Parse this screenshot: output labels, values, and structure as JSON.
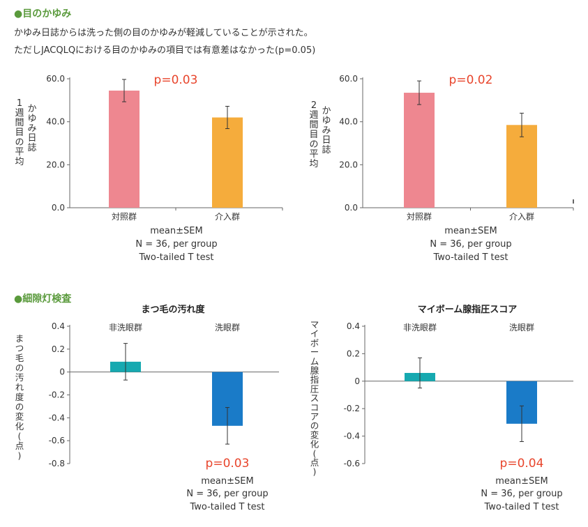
{
  "section1": {
    "heading": "●目のかゆみ",
    "line1": "かゆみ日誌からは洗った側の目のかゆみが軽減していることが示された。",
    "line2": "ただしJACQLQにおける目のかゆみの項目では有意差はなかった(p=0.05)"
  },
  "section2": {
    "heading": "●細隙灯検査"
  },
  "colors": {
    "control_bar": "#ee8790",
    "intervention_bar": "#f5ac3c",
    "non_wash_bar": "#16a9b0",
    "wash_bar": "#1a7bc8",
    "p_value": "#e8452c",
    "section_heading": "#5a9a3c"
  },
  "chart_data": [
    {
      "type": "bar",
      "title": "",
      "ylabel_col1": "1週間目の平均",
      "ylabel_col2": "かゆみ日誌",
      "categories": [
        "対照群",
        "介入群"
      ],
      "values": [
        54.5,
        42.0
      ],
      "errors": [
        5.2,
        5.2
      ],
      "yticks": [
        "60.0",
        "40.0",
        "20.0",
        "0.0"
      ],
      "ylim": [
        0,
        60
      ],
      "p_value": "p=0.03",
      "notes": [
        "mean±SEM",
        "N = 36, per group",
        "Two-tailed T test"
      ]
    },
    {
      "type": "bar",
      "title": "",
      "ylabel_col1": "2週間目の平均",
      "ylabel_col2": "かゆみ日誌",
      "categories": [
        "対照群",
        "介入群"
      ],
      "values": [
        53.5,
        38.5
      ],
      "errors": [
        5.5,
        5.5
      ],
      "yticks": [
        "60.0",
        "40.0",
        "20.0",
        "0.0"
      ],
      "ylim": [
        0,
        60
      ],
      "p_value": "p=0.02",
      "notes": [
        "mean±SEM",
        "N = 36, per group",
        "Two-tailed T test"
      ]
    },
    {
      "type": "bar",
      "title": "まつ毛の汚れ度",
      "ylabel": "まつ毛の汚れ度の変化(点)",
      "categories": [
        "非洗眼群",
        "洗眼群"
      ],
      "values": [
        0.09,
        -0.47
      ],
      "errors": [
        0.16,
        0.16
      ],
      "yticks": [
        "0.4",
        "0.2",
        "0",
        "-0.2",
        "-0.4",
        "-0.6",
        "-0.8"
      ],
      "ylim": [
        -0.8,
        0.4
      ],
      "p_value": "p=0.03",
      "notes": [
        "mean±SEM",
        "N = 36, per group",
        "Two-tailed T test"
      ]
    },
    {
      "type": "bar",
      "title": "マイボーム腺指圧スコア",
      "ylabel": "マイボーム腺指圧スコアの変化(点)",
      "categories": [
        "非洗眼群",
        "洗眼群"
      ],
      "values": [
        0.06,
        -0.31
      ],
      "errors": [
        0.11,
        0.13
      ],
      "yticks": [
        "0.4",
        "0.2",
        "0",
        "-0.2",
        "-0.4",
        "-0.6"
      ],
      "ylim": [
        -0.6,
        0.4
      ],
      "p_value": "p=0.04",
      "notes": [
        "mean±SEM",
        "N = 36, per group",
        "Two-tailed T test"
      ]
    }
  ]
}
